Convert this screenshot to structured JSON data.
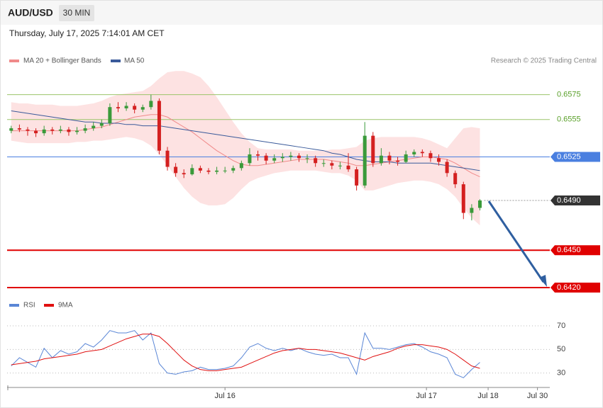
{
  "header": {
    "symbol": "AUD/USD",
    "interval": "30 MIN",
    "timestamp": "Thursday, July 17, 2025 7:14:01 AM CET"
  },
  "chart_data": [
    {
      "type": "candlestick",
      "credit": "Research © 2025 Trading Central",
      "up_color": "#3a9a3a",
      "down_color": "#d42020",
      "xlim": [
        -0.5,
        65.5
      ],
      "xticks": [
        {
          "value": 26,
          "label": "Jul 16"
        },
        {
          "value": 50.5,
          "label": "Jul 17"
        },
        {
          "value": 58,
          "label": "Jul 18"
        },
        {
          "value": 64,
          "label": "Jul 30"
        }
      ],
      "ylim": [
        0.6412,
        0.6597
      ],
      "ohlc": [
        [
          0.6546,
          0.655,
          0.6544,
          0.6548
        ],
        [
          0.6548,
          0.6551,
          0.6545,
          0.6547
        ],
        [
          0.6547,
          0.6549,
          0.6542,
          0.6546
        ],
        [
          0.6546,
          0.6548,
          0.6541,
          0.6544
        ],
        [
          0.6544,
          0.655,
          0.6542,
          0.6547
        ],
        [
          0.6547,
          0.6549,
          0.6543,
          0.6546
        ],
        [
          0.6546,
          0.655,
          0.6544,
          0.6547
        ],
        [
          0.6547,
          0.6549,
          0.6542,
          0.6545
        ],
        [
          0.6545,
          0.6549,
          0.6543,
          0.6546
        ],
        [
          0.6546,
          0.6551,
          0.6544,
          0.6548
        ],
        [
          0.6548,
          0.6553,
          0.6546,
          0.655
        ],
        [
          0.655,
          0.6555,
          0.6548,
          0.6552
        ],
        [
          0.6552,
          0.6568,
          0.655,
          0.6565
        ],
        [
          0.6565,
          0.6569,
          0.6561,
          0.6564
        ],
        [
          0.6564,
          0.6569,
          0.6562,
          0.6566
        ],
        [
          0.6566,
          0.6568,
          0.656,
          0.6563
        ],
        [
          0.6563,
          0.6567,
          0.6561,
          0.6565
        ],
        [
          0.6565,
          0.6575,
          0.6563,
          0.657
        ],
        [
          0.657,
          0.6572,
          0.6527,
          0.653
        ],
        [
          0.653,
          0.6533,
          0.6514,
          0.6517
        ],
        [
          0.6517,
          0.652,
          0.6509,
          0.6512
        ],
        [
          0.6512,
          0.6515,
          0.6508,
          0.6511
        ],
        [
          0.6511,
          0.6519,
          0.651,
          0.6516
        ],
        [
          0.6516,
          0.6518,
          0.6512,
          0.6514
        ],
        [
          0.6514,
          0.6516,
          0.6511,
          0.6513
        ],
        [
          0.6513,
          0.6517,
          0.6511,
          0.6514
        ],
        [
          0.6514,
          0.6517,
          0.6512,
          0.6514
        ],
        [
          0.6514,
          0.6518,
          0.6512,
          0.6516
        ],
        [
          0.6516,
          0.6522,
          0.6514,
          0.652
        ],
        [
          0.652,
          0.6532,
          0.6518,
          0.6527
        ],
        [
          0.6527,
          0.653,
          0.6522,
          0.6526
        ],
        [
          0.6526,
          0.6528,
          0.6519,
          0.6522
        ],
        [
          0.6522,
          0.6527,
          0.652,
          0.6524
        ],
        [
          0.6524,
          0.6528,
          0.6521,
          0.6525
        ],
        [
          0.6525,
          0.6529,
          0.6522,
          0.6526
        ],
        [
          0.6526,
          0.6528,
          0.6521,
          0.6524
        ],
        [
          0.6524,
          0.6527,
          0.652,
          0.6524
        ],
        [
          0.6524,
          0.6526,
          0.6517,
          0.652
        ],
        [
          0.652,
          0.6523,
          0.6517,
          0.652
        ],
        [
          0.652,
          0.6522,
          0.6515,
          0.6518
        ],
        [
          0.6518,
          0.6521,
          0.6515,
          0.6518
        ],
        [
          0.6518,
          0.6528,
          0.6513,
          0.6515
        ],
        [
          0.6515,
          0.6517,
          0.6498,
          0.6502
        ],
        [
          0.6502,
          0.6553,
          0.65,
          0.6542
        ],
        [
          0.6542,
          0.6545,
          0.6517,
          0.652
        ],
        [
          0.652,
          0.6532,
          0.6518,
          0.6526
        ],
        [
          0.6526,
          0.6529,
          0.6519,
          0.6522
        ],
        [
          0.6522,
          0.6525,
          0.6518,
          0.6521
        ],
        [
          0.6521,
          0.653,
          0.652,
          0.6527
        ],
        [
          0.6527,
          0.6531,
          0.6525,
          0.6529
        ],
        [
          0.6529,
          0.6531,
          0.6525,
          0.6528
        ],
        [
          0.6528,
          0.653,
          0.6521,
          0.6524
        ],
        [
          0.6524,
          0.6527,
          0.6518,
          0.6521
        ],
        [
          0.6521,
          0.6523,
          0.6509,
          0.6512
        ],
        [
          0.6512,
          0.6514,
          0.65,
          0.6503
        ],
        [
          0.6503,
          0.6505,
          0.6475,
          0.648
        ],
        [
          0.648,
          0.6487,
          0.6474,
          0.6484
        ],
        [
          0.6484,
          0.6491,
          0.6482,
          0.649
        ]
      ],
      "series": [
        {
          "name": "MA 20 + Bollinger Bands",
          "color": "#f08a8a",
          "band_color": "#fde2e2",
          "values": [
            0.6546,
            0.6546,
            0.6546,
            0.6546,
            0.6546,
            0.6546,
            0.6546,
            0.6546,
            0.6546,
            0.6547,
            0.6548,
            0.6549,
            0.6551,
            0.6553,
            0.6555,
            0.6557,
            0.6558,
            0.6559,
            0.6559,
            0.6557,
            0.6553,
            0.6549,
            0.6545,
            0.654,
            0.6535,
            0.653,
            0.6526,
            0.6522,
            0.6519,
            0.6518,
            0.6518,
            0.6519,
            0.652,
            0.6521,
            0.6522,
            0.6523,
            0.6523,
            0.6523,
            0.6523,
            0.6522,
            0.6521,
            0.652,
            0.6518,
            0.6518,
            0.6519,
            0.652,
            0.6521,
            0.6522,
            0.6523,
            0.6524,
            0.6525,
            0.6525,
            0.6524,
            0.6523,
            0.652,
            0.6516,
            0.6512,
            0.6509
          ],
          "band_upper": [
            0.6569,
            0.6568,
            0.6568,
            0.6567,
            0.6567,
            0.6567,
            0.6566,
            0.6566,
            0.6566,
            0.6567,
            0.6568,
            0.657,
            0.6573,
            0.6575,
            0.6576,
            0.6577,
            0.6578,
            0.6582,
            0.6588,
            0.6593,
            0.6594,
            0.6594,
            0.6592,
            0.6589,
            0.6582,
            0.6573,
            0.6563,
            0.6553,
            0.6544,
            0.6537,
            0.6532,
            0.6531,
            0.6531,
            0.6531,
            0.6531,
            0.653,
            0.653,
            0.653,
            0.653,
            0.6531,
            0.6531,
            0.6532,
            0.6533,
            0.6538,
            0.654,
            0.6541,
            0.6541,
            0.6541,
            0.6541,
            0.6541,
            0.654,
            0.6538,
            0.6535,
            0.6532,
            0.654,
            0.6548,
            0.6549,
            0.6548
          ],
          "band_lower": [
            0.6538,
            0.6537,
            0.6536,
            0.6536,
            0.6536,
            0.6536,
            0.6536,
            0.6536,
            0.6537,
            0.6537,
            0.6538,
            0.6538,
            0.6539,
            0.654,
            0.6541,
            0.654,
            0.6538,
            0.6534,
            0.6527,
            0.6518,
            0.6509,
            0.65,
            0.6493,
            0.6488,
            0.6486,
            0.6486,
            0.6487,
            0.6492,
            0.6499,
            0.6505,
            0.6508,
            0.651,
            0.6512,
            0.6513,
            0.6514,
            0.6514,
            0.6514,
            0.6514,
            0.6513,
            0.6512,
            0.6512,
            0.651,
            0.6506,
            0.6498,
            0.6498,
            0.65,
            0.6502,
            0.6504,
            0.6505,
            0.6506,
            0.6506,
            0.6505,
            0.6503,
            0.6499,
            0.6493,
            0.6484,
            0.6476,
            0.647
          ]
        },
        {
          "name": "MA 50",
          "color": "#3a5a9a",
          "values": [
            0.6562,
            0.6561,
            0.656,
            0.6559,
            0.6558,
            0.6557,
            0.6556,
            0.6555,
            0.6554,
            0.6553,
            0.6553,
            0.6552,
            0.6552,
            0.6552,
            0.6551,
            0.6551,
            0.655,
            0.655,
            0.655,
            0.6549,
            0.6548,
            0.6547,
            0.6546,
            0.6545,
            0.6544,
            0.6543,
            0.6542,
            0.6541,
            0.654,
            0.6539,
            0.6538,
            0.6537,
            0.6536,
            0.6535,
            0.6534,
            0.6533,
            0.6532,
            0.6531,
            0.653,
            0.6528,
            0.6527,
            0.6525,
            0.6523,
            0.6522,
            0.6521,
            0.6521,
            0.6521,
            0.652,
            0.652,
            0.652,
            0.652,
            0.652,
            0.6519,
            0.6518,
            0.6517,
            0.6516,
            0.6515,
            0.6514
          ]
        }
      ],
      "levels": [
        {
          "value": 0.6575,
          "label": "0.6575",
          "color": "#9cc46a",
          "text_color": "#5aa02a",
          "box": false,
          "line": "solid"
        },
        {
          "value": 0.6555,
          "label": "0.6555",
          "color": "#9cc46a",
          "text_color": "#5aa02a",
          "box": false,
          "line": "solid"
        },
        {
          "value": 0.6525,
          "label": "0.6525",
          "color": "#4a7fe0",
          "text_color": "#ffffff",
          "box": true,
          "line": "solid"
        },
        {
          "value": 0.649,
          "label": "0.6490",
          "color": "#333333",
          "text_color": "#ffffff",
          "box": true,
          "line": "dotted"
        },
        {
          "value": 0.645,
          "label": "0.6450",
          "color": "#e00000",
          "text_color": "#ffffff",
          "box": true,
          "line": "solid"
        },
        {
          "value": 0.642,
          "label": "0.6420",
          "color": "#e00000",
          "text_color": "#ffffff",
          "box": true,
          "line": "solid"
        }
      ]
    },
    {
      "type": "line",
      "ylim": [
        22,
        79
      ],
      "yticks": [
        30,
        50,
        70
      ],
      "grid": true,
      "series": [
        {
          "name": "RSI",
          "color": "#5a86d6",
          "values": [
            36,
            43,
            39,
            35,
            51,
            43,
            49,
            46,
            48,
            55,
            52,
            58,
            66,
            64,
            64,
            66,
            58,
            64,
            38,
            30,
            29,
            31,
            32,
            35,
            33,
            33,
            34,
            36,
            43,
            52,
            55,
            51,
            49,
            51,
            49,
            51,
            48,
            46,
            45,
            46,
            43,
            43,
            29,
            64,
            51,
            51,
            50,
            52,
            54,
            55,
            52,
            48,
            46,
            43,
            29,
            26,
            33,
            39
          ]
        },
        {
          "name": "9MA",
          "color": "#e01010",
          "values": [
            37,
            38,
            39,
            40,
            42,
            43,
            44,
            45,
            46,
            48,
            49,
            50,
            53,
            56,
            59,
            61,
            63,
            63,
            61,
            55,
            48,
            41,
            36,
            33,
            32,
            32,
            33,
            34,
            35,
            38,
            41,
            44,
            47,
            49,
            50,
            51,
            50,
            50,
            49,
            48,
            47,
            45,
            43,
            41,
            44,
            46,
            48,
            51,
            53,
            54,
            54,
            53,
            52,
            50,
            46,
            41,
            36,
            34
          ]
        }
      ]
    }
  ]
}
